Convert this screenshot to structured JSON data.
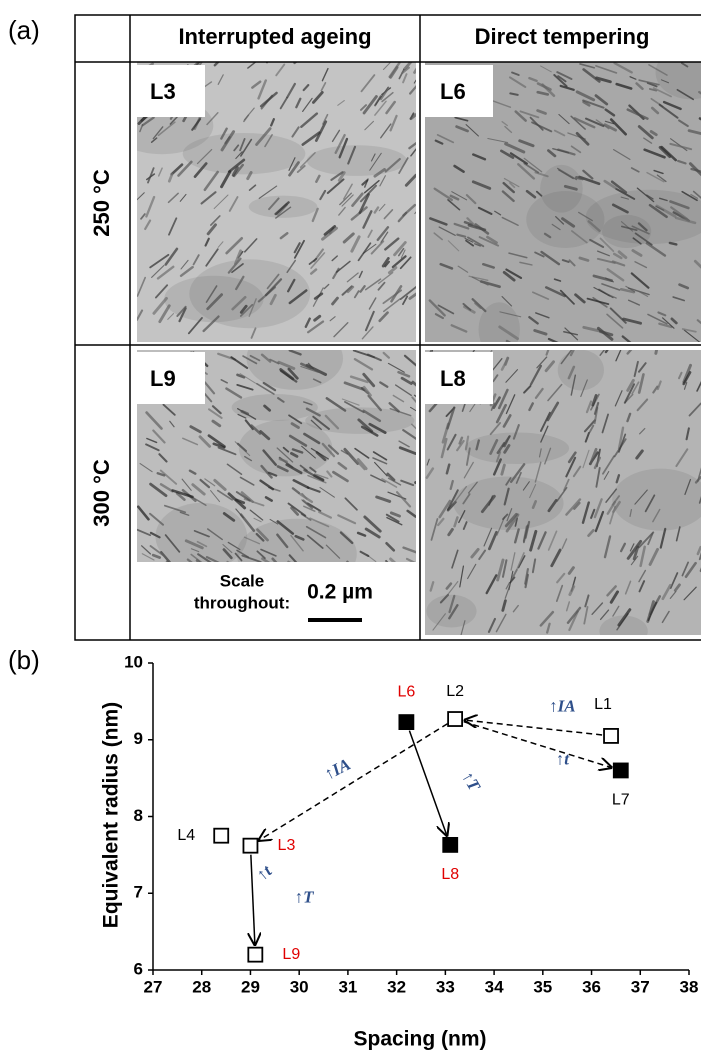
{
  "panel_a": {
    "label": "(a)",
    "columns": [
      "Interrupted ageing",
      "Direct tempering"
    ],
    "rows": [
      "250 °C",
      "300 °C"
    ],
    "images": [
      [
        "L3",
        "L6"
      ],
      [
        "L9",
        "L8"
      ]
    ],
    "scale_label": [
      "Scale",
      "throughout:"
    ],
    "scale_value": "0.2 µm"
  },
  "chart_data": {
    "type": "scatter",
    "panel_label": "(b)",
    "x_label": "Spacing (nm)",
    "y_label": "Equivalent radius (nm)",
    "xlim": [
      27,
      38
    ],
    "xticks": [
      27,
      28,
      29,
      30,
      31,
      32,
      33,
      34,
      35,
      36,
      37,
      38
    ],
    "ylim": [
      6,
      10
    ],
    "yticks": [
      6,
      7,
      8,
      9,
      10
    ],
    "series": [
      {
        "marker": "open-square",
        "color": "#000000",
        "x": [
          36.4,
          33.2,
          28.4,
          29.0,
          29.1
        ],
        "values": [
          9.05,
          9.27,
          7.75,
          7.62,
          6.2
        ],
        "labels": [
          "L1",
          "L2",
          "L4",
          "L3",
          "L9"
        ],
        "label_colors": [
          "#000000",
          "#000000",
          "#000000",
          "#e00000",
          "#e00000"
        ]
      },
      {
        "marker": "filled-square",
        "color": "#000000",
        "x": [
          32.2,
          36.6,
          33.1
        ],
        "values": [
          9.23,
          8.6,
          7.63
        ],
        "labels": [
          "L6",
          "L7",
          "L8"
        ],
        "label_colors": [
          "#e00000",
          "#000000",
          "#e00000"
        ]
      }
    ],
    "annotations": [
      "↑IA",
      "↑IA",
      "↑T",
      "↑t",
      "↑t",
      "↑T"
    ],
    "annotation_color": "#2e4f8a"
  }
}
